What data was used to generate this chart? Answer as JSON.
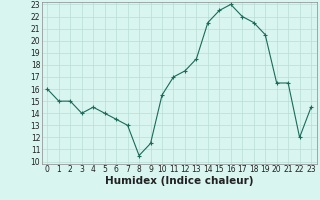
{
  "x": [
    0,
    1,
    2,
    3,
    4,
    5,
    6,
    7,
    8,
    9,
    10,
    11,
    12,
    13,
    14,
    15,
    16,
    17,
    18,
    19,
    20,
    21,
    22,
    23
  ],
  "y": [
    16,
    15,
    15,
    14,
    14.5,
    14,
    13.5,
    13,
    10.5,
    11.5,
    15.5,
    17,
    17.5,
    18.5,
    21.5,
    22.5,
    23,
    22,
    21.5,
    20.5,
    16.5,
    16.5,
    12,
    14.5
  ],
  "line_color": "#1a6b5a",
  "marker_color": "#1a6b5a",
  "bg_color": "#d8f5f0",
  "grid_color": "#b8ddd5",
  "xlabel": "Humidex (Indice chaleur)",
  "ylim": [
    10,
    23
  ],
  "xlim": [
    -0.5,
    23.5
  ],
  "yticks": [
    10,
    11,
    12,
    13,
    14,
    15,
    16,
    17,
    18,
    19,
    20,
    21,
    22,
    23
  ],
  "xticks": [
    0,
    1,
    2,
    3,
    4,
    5,
    6,
    7,
    8,
    9,
    10,
    11,
    12,
    13,
    14,
    15,
    16,
    17,
    18,
    19,
    20,
    21,
    22,
    23
  ],
  "tick_fontsize": 5.5,
  "xlabel_fontsize": 7.5,
  "label_color": "#222222"
}
